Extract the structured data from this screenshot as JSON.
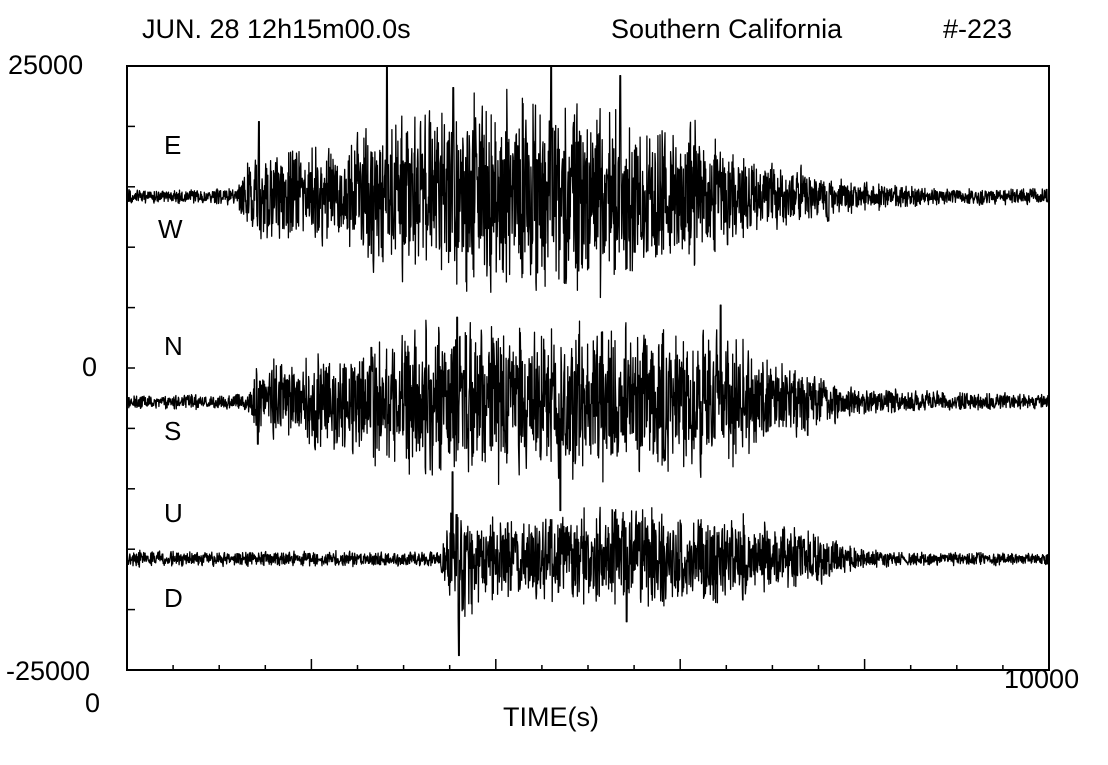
{
  "header": {
    "date_time": "JUN. 28  12h15m00.0s",
    "region": "Southern California",
    "event_id": "#-223"
  },
  "colors": {
    "trace": "#000000",
    "background": "#ffffff"
  },
  "chart_data": {
    "type": "line",
    "title": "",
    "xlabel": "TIME(s)",
    "ylabel": "",
    "xlim": [
      0,
      10000
    ],
    "ylim": [
      -25000,
      25000
    ],
    "x_tick_labels": [
      "0",
      "10000"
    ],
    "y_tick_labels": [
      "25000",
      "0",
      "-25000"
    ],
    "grid": false,
    "component_labels": [
      {
        "up": "E",
        "down": "W"
      },
      {
        "up": "N",
        "down": "S"
      },
      {
        "up": "U",
        "down": "D"
      }
    ],
    "series": [
      {
        "baseline": 14200,
        "envelope": [
          [
            0,
            700
          ],
          [
            1200,
            900
          ],
          [
            1300,
            4500
          ],
          [
            2300,
            5500
          ],
          [
            2800,
            8000
          ],
          [
            3500,
            9500
          ],
          [
            4500,
            11000
          ],
          [
            5000,
            9500
          ],
          [
            6000,
            7500
          ],
          [
            7000,
            3500
          ],
          [
            8000,
            1500
          ],
          [
            9000,
            900
          ],
          [
            10000,
            800
          ]
        ],
        "spikes": [
          [
            2820,
            10800
          ],
          [
            4600,
            11000
          ],
          [
            5350,
            10000
          ],
          [
            3540,
            9000
          ],
          [
            1430,
            6200
          ]
        ]
      },
      {
        "baseline": -2800,
        "envelope": [
          [
            0,
            700
          ],
          [
            1300,
            800
          ],
          [
            1400,
            3500
          ],
          [
            2600,
            6000
          ],
          [
            3500,
            8500
          ],
          [
            4500,
            8000
          ],
          [
            5000,
            8500
          ],
          [
            6500,
            7000
          ],
          [
            7200,
            4000
          ],
          [
            7800,
            1500
          ],
          [
            10000,
            700
          ]
        ],
        "spikes": [
          [
            3580,
            7000
          ],
          [
            6440,
            8000
          ],
          [
            4700,
            -9000
          ],
          [
            2650,
            4500
          ],
          [
            1420,
            -3500
          ]
        ]
      },
      {
        "baseline": -15800,
        "envelope": [
          [
            0,
            800
          ],
          [
            3400,
            800
          ],
          [
            3500,
            6000
          ],
          [
            3700,
            7000
          ],
          [
            3850,
            4500
          ],
          [
            4200,
            4500
          ],
          [
            5600,
            5500
          ],
          [
            6500,
            4500
          ],
          [
            7200,
            3500
          ],
          [
            7800,
            1500
          ],
          [
            8300,
            800
          ],
          [
            10000,
            600
          ]
        ],
        "spikes": [
          [
            3600,
            -8000
          ],
          [
            3530,
            7200
          ],
          [
            5420,
            -5200
          ]
        ]
      }
    ]
  }
}
